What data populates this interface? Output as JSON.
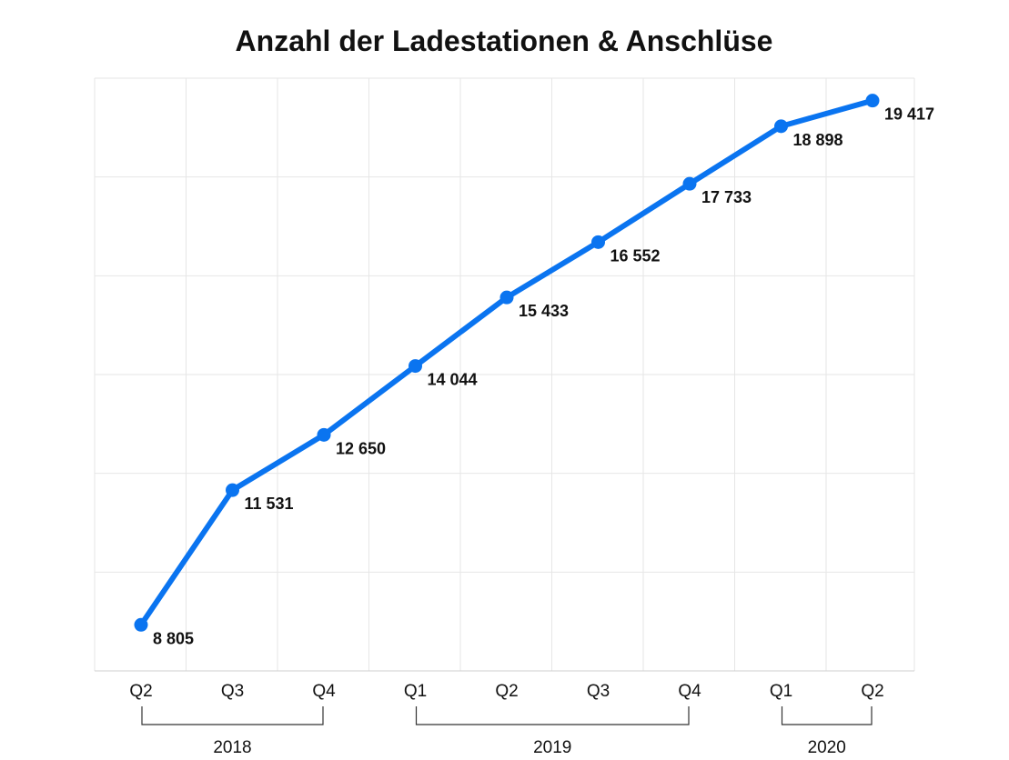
{
  "chart_data": {
    "type": "line",
    "title": "Anzahl der Ladestationen & Anschlüse",
    "xlabel": "",
    "ylabel": "",
    "categories": [
      "Q2",
      "Q3",
      "Q4",
      "Q1",
      "Q2",
      "Q3",
      "Q4",
      "Q1",
      "Q2"
    ],
    "year_groups": [
      {
        "label": "2018",
        "from": 0,
        "to": 2
      },
      {
        "label": "2019",
        "from": 3,
        "to": 6
      },
      {
        "label": "2020",
        "from": 7,
        "to": 8
      }
    ],
    "series": [
      {
        "values": [
          8805,
          11531,
          12650,
          14044,
          15433,
          16552,
          17733,
          18898,
          19417
        ],
        "value_labels": [
          "8 805",
          "11 531",
          "12 650",
          "14 044",
          "15 433",
          "16 552",
          "17 733",
          "18 898",
          "19 417"
        ],
        "color": "#0a74f0"
      }
    ],
    "ylim": [
      8000,
      20000
    ],
    "grid": true,
    "legend": "none"
  }
}
